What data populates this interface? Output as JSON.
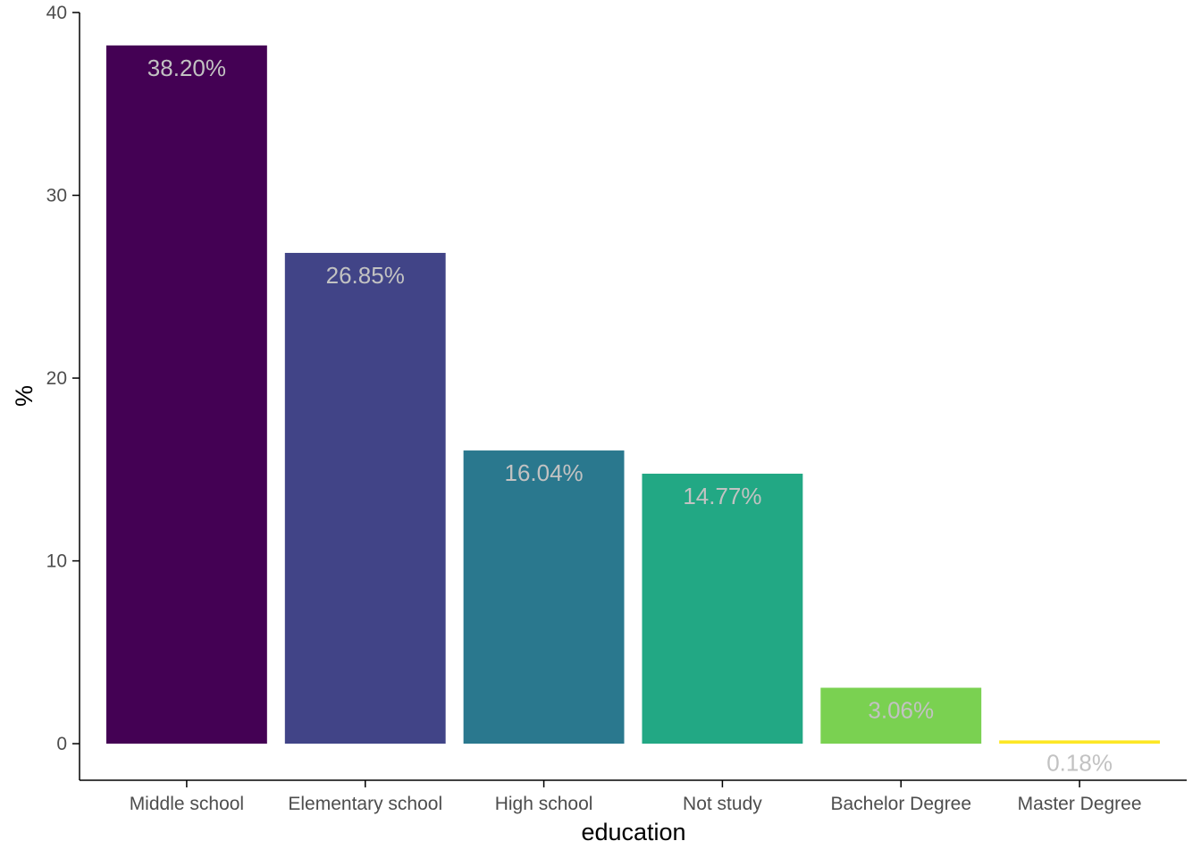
{
  "chart_data": {
    "type": "bar",
    "xlabel": "education",
    "ylabel": "%",
    "ylim": [
      -2,
      40
    ],
    "yticks": [
      0,
      10,
      20,
      30,
      40
    ],
    "grid": false,
    "legend": "none",
    "categories": [
      "Middle school",
      "Elementary school",
      "High school",
      "Not study",
      "Bachelor Degree",
      "Master Degree"
    ],
    "values": [
      38.2,
      26.85,
      16.04,
      14.77,
      3.06,
      0.18
    ],
    "labels": [
      "38.20%",
      "26.85%",
      "16.04%",
      "14.77%",
      "3.06%",
      "0.18%"
    ],
    "colors": [
      "#440154",
      "#414487",
      "#2A788E",
      "#22A884",
      "#7AD151",
      "#FDE725"
    ]
  }
}
